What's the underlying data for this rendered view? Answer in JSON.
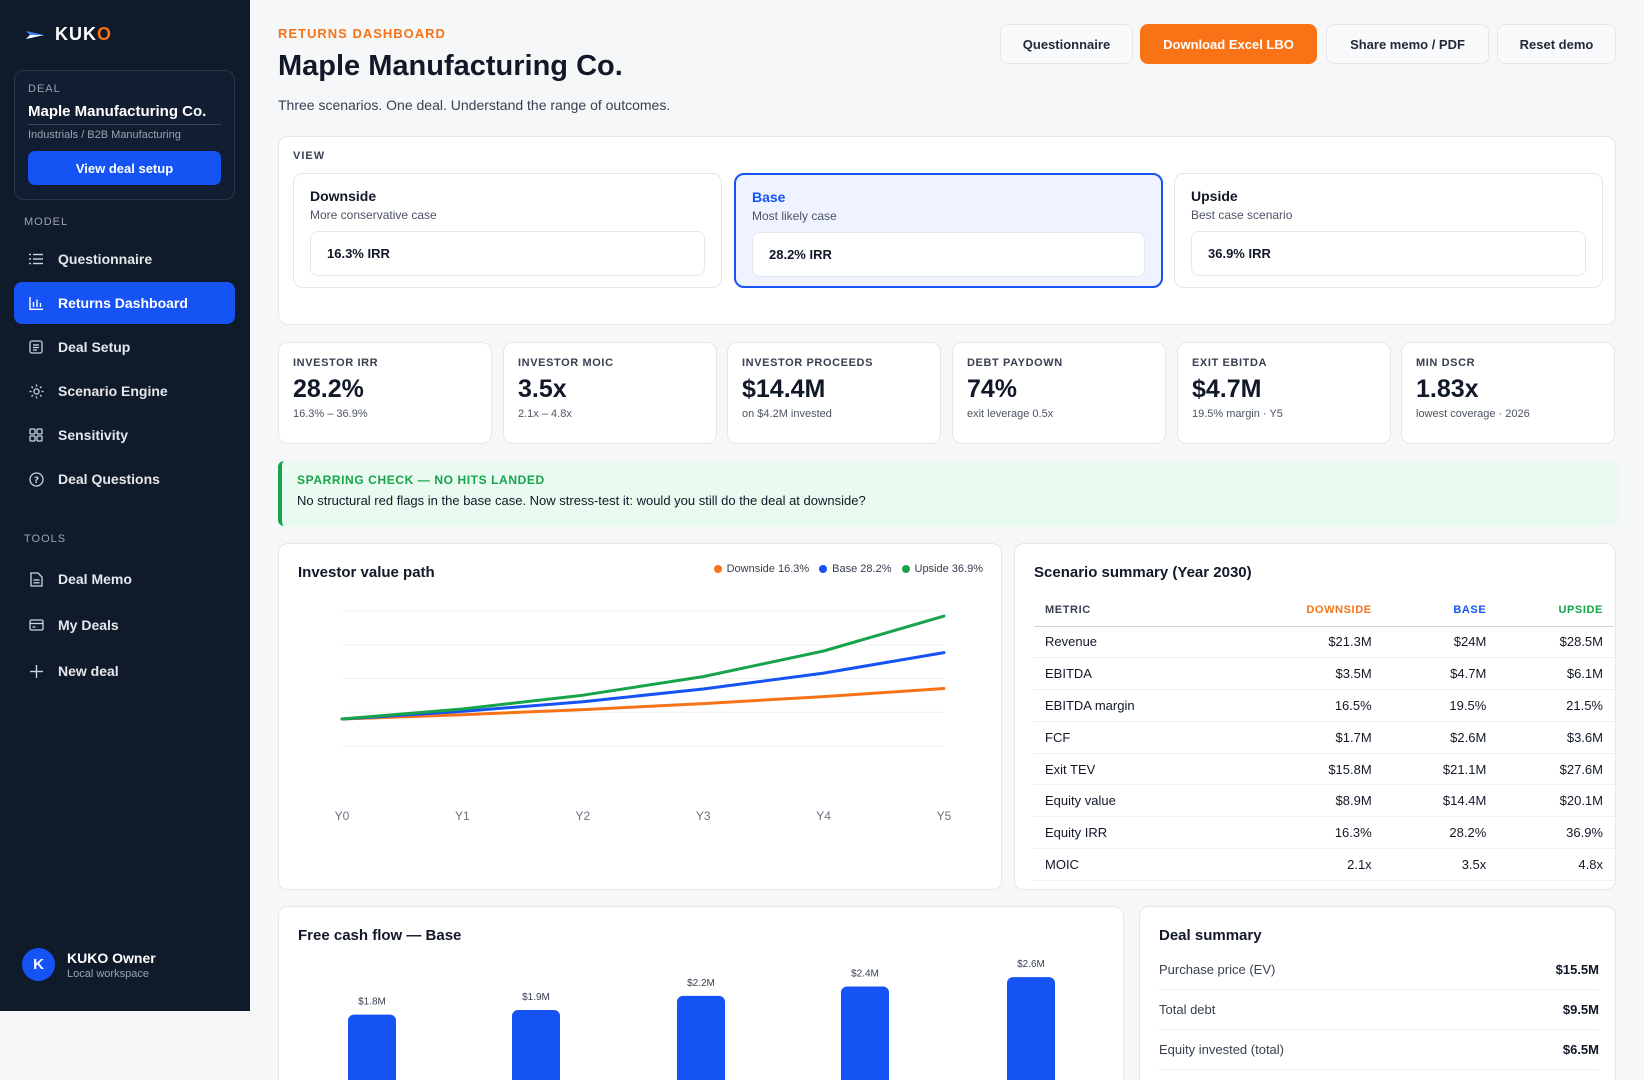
{
  "brand": {
    "name_main": "KUK",
    "name_accent": "O"
  },
  "sidebar": {
    "deal_label": "DEAL",
    "deal_name": "Maple Manufacturing Co.",
    "deal_sector": "Industrials / B2B Manufacturing",
    "view_setup_label": "View deal setup",
    "model_label": "MODEL",
    "tools_label": "TOOLS",
    "model_items": [
      {
        "label": "Questionnaire",
        "icon": "list-icon",
        "active": false
      },
      {
        "label": "Returns Dashboard",
        "icon": "bar-chart-icon",
        "active": true
      },
      {
        "label": "Deal Setup",
        "icon": "document-list-icon",
        "active": false
      },
      {
        "label": "Scenario Engine",
        "icon": "sun-gear-icon",
        "active": false
      },
      {
        "label": "Sensitivity",
        "icon": "grid-icon",
        "active": false
      },
      {
        "label": "Deal Questions",
        "icon": "question-circle-icon",
        "active": false
      }
    ],
    "tool_items": [
      {
        "label": "Deal Memo",
        "icon": "file-icon"
      },
      {
        "label": "My Deals",
        "icon": "card-icon"
      },
      {
        "label": "New deal",
        "icon": "plus-icon"
      }
    ],
    "user": {
      "initial": "K",
      "name": "KUKO Owner",
      "workspace": "Local workspace"
    }
  },
  "header": {
    "eyebrow": "RETURNS DASHBOARD",
    "title": "Maple Manufacturing Co.",
    "subtitle": "Three scenarios. One deal. Understand the range of outcomes.",
    "buttons": {
      "questionnaire": "Questionnaire",
      "download": "Download Excel LBO",
      "share": "Share memo / PDF",
      "reset": "Reset demo"
    }
  },
  "view": {
    "label": "VIEW",
    "scenarios": [
      {
        "name": "Downside",
        "desc": "More conservative case",
        "irr": "16.3% IRR",
        "selected": false
      },
      {
        "name": "Base",
        "desc": "Most likely case",
        "irr": "28.2% IRR",
        "selected": true
      },
      {
        "name": "Upside",
        "desc": "Best case scenario",
        "irr": "36.9% IRR",
        "selected": false
      }
    ]
  },
  "kpis": [
    {
      "label": "INVESTOR IRR",
      "value": "28.2%",
      "sub": "16.3% – 36.9%"
    },
    {
      "label": "INVESTOR MOIC",
      "value": "3.5x",
      "sub": "2.1x – 4.8x"
    },
    {
      "label": "INVESTOR PROCEEDS",
      "value": "$14.4M",
      "sub": "on $4.2M invested"
    },
    {
      "label": "DEBT PAYDOWN",
      "value": "74%",
      "sub": "exit leverage 0.5x"
    },
    {
      "label": "EXIT EBITDA",
      "value": "$4.7M",
      "sub": "19.5% margin · Y5"
    },
    {
      "label": "MIN DSCR",
      "value": "1.83x",
      "sub": "lowest coverage · 2026"
    }
  ],
  "alert": {
    "title": "SPARRING CHECK — NO HITS LANDED",
    "body": "No structural red flags in the base case. Now stress-test it: would you still do the deal at downside?"
  },
  "colors": {
    "downside": "#f97316",
    "base": "#1553f5",
    "upside": "#16a34a"
  },
  "value_path": {
    "title": "Investor value path",
    "chart_data": {
      "type": "line",
      "title": "Investor value path",
      "x": [
        "Y0",
        "Y1",
        "Y2",
        "Y3",
        "Y4",
        "Y5"
      ],
      "series": [
        {
          "name": "Downside 16.3%",
          "values": [
            1.0,
            1.16,
            1.35,
            1.57,
            1.83,
            2.13
          ]
        },
        {
          "name": "Base 28.2%",
          "values": [
            1.0,
            1.28,
            1.64,
            2.11,
            2.7,
            3.46
          ]
        },
        {
          "name": "Upside 36.9%",
          "values": [
            1.0,
            1.37,
            1.88,
            2.57,
            3.52,
            4.81
          ]
        }
      ],
      "ylim": [
        0,
        5
      ],
      "grid": true,
      "legend": "top-right"
    }
  },
  "scenario_summary": {
    "title": "Scenario summary (Year 2030)",
    "headers": [
      "METRIC",
      "DOWNSIDE",
      "BASE",
      "UPSIDE"
    ],
    "rows": [
      [
        "Revenue",
        "$21.3M",
        "$24M",
        "$28.5M"
      ],
      [
        "EBITDA",
        "$3.5M",
        "$4.7M",
        "$6.1M"
      ],
      [
        "EBITDA margin",
        "16.5%",
        "19.5%",
        "21.5%"
      ],
      [
        "FCF",
        "$1.7M",
        "$2.6M",
        "$3.6M"
      ],
      [
        "Exit TEV",
        "$15.8M",
        "$21.1M",
        "$27.6M"
      ],
      [
        "Equity value",
        "$8.9M",
        "$14.4M",
        "$20.1M"
      ],
      [
        "Equity IRR",
        "16.3%",
        "28.2%",
        "36.9%"
      ],
      [
        "MOIC",
        "2.1x",
        "3.5x",
        "4.8x"
      ]
    ]
  },
  "fcf": {
    "title": "Free cash flow — Base",
    "chart_data": {
      "type": "bar",
      "title": "Free cash flow — Base",
      "categories": [
        "",
        "",
        "",
        "",
        ""
      ],
      "values": [
        1.8,
        1.9,
        2.2,
        2.4,
        2.6
      ],
      "labels": [
        "$1.8M",
        "$1.9M",
        "$2.2M",
        "$2.4M",
        "$2.6M"
      ],
      "ylim": [
        0,
        3.2
      ]
    }
  },
  "deal_summary": {
    "title": "Deal summary",
    "rows": [
      {
        "label": "Purchase price (EV)",
        "value": "$15.5M"
      },
      {
        "label": "Total debt",
        "value": "$9.5M"
      },
      {
        "label": "Equity invested (total)",
        "value": "$6.5M"
      }
    ]
  }
}
